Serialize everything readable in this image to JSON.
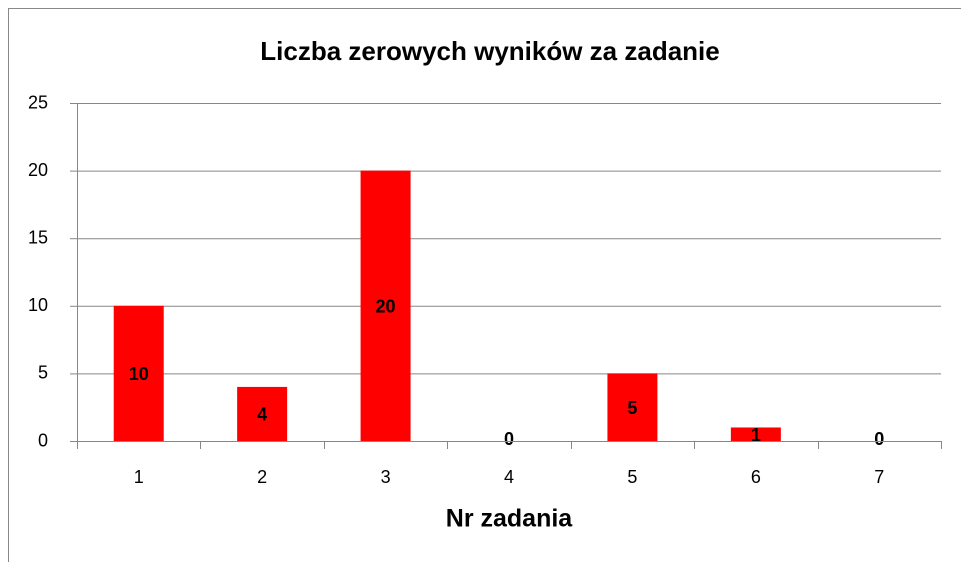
{
  "chart_data": {
    "type": "bar",
    "title": "Liczba zerowych wyników za zadanie",
    "x_label": "Nr zadania",
    "categories": [
      "1",
      "2",
      "3",
      "4",
      "5",
      "6",
      "7"
    ],
    "values": [
      10,
      4,
      20,
      0,
      5,
      1,
      0
    ],
    "color": "#ff0000",
    "ylim": [
      0,
      25
    ],
    "yticks": [
      0,
      5,
      10,
      15,
      20,
      25
    ],
    "grid": true
  }
}
